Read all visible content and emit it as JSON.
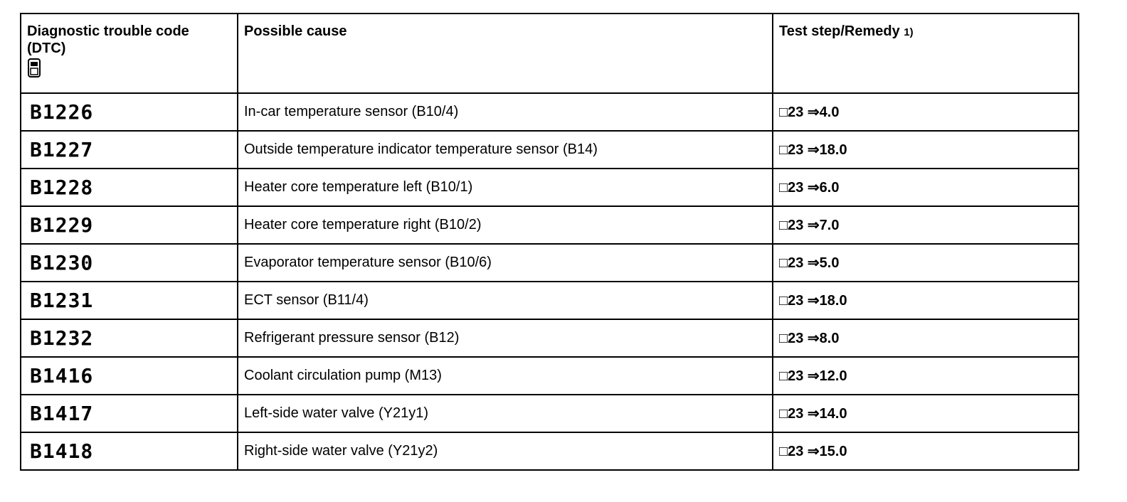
{
  "header": {
    "code": "Diagnostic trouble code (DTC)",
    "cause": "Possible cause",
    "remedy": "Test step/Remedy",
    "remedy_note": "1)"
  },
  "rows": [
    [
      "B1226",
      "In-car temperature sensor (B10/4)",
      "□23 ⇒4.0"
    ],
    [
      "B1227",
      "Outside temperature indicator temperature sensor (B14)",
      "□23 ⇒18.0"
    ],
    [
      "B1228",
      "Heater core temperature left (B10/1)",
      "□23 ⇒6.0"
    ],
    [
      "B1229",
      "Heater core temperature right (B10/2)",
      "□23 ⇒7.0"
    ],
    [
      "B1230",
      "Evaporator temperature sensor (B10/6)",
      "□23 ⇒5.0"
    ],
    [
      "B1231",
      "ECT sensor (B11/4)",
      "□23 ⇒18.0"
    ],
    [
      "B1232",
      "Refrigerant pressure sensor (B12)",
      "□23 ⇒8.0"
    ],
    [
      "B1416",
      "Coolant circulation pump (M13)",
      "□23 ⇒12.0"
    ],
    [
      "B1417",
      "Left-side water valve (Y21y1)",
      "□23 ⇒14.0"
    ],
    [
      "B1418",
      "Right-side water valve (Y21y2)",
      "□23 ⇒15.0"
    ]
  ]
}
